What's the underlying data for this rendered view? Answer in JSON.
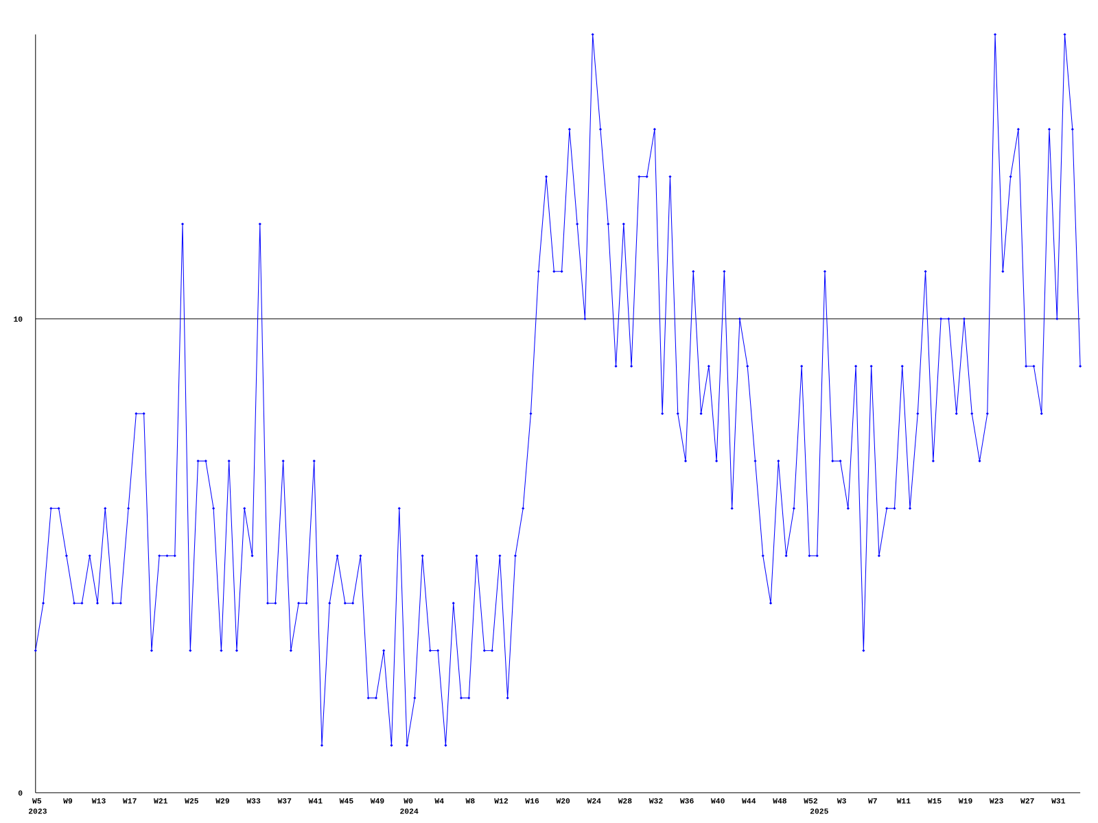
{
  "chart_data": {
    "type": "line",
    "categories": [
      "W5",
      null,
      null,
      null,
      "W9",
      null,
      null,
      null,
      "W13",
      null,
      null,
      null,
      "W17",
      null,
      null,
      null,
      "W21",
      null,
      null,
      null,
      "W25",
      null,
      null,
      null,
      "W29",
      null,
      null,
      null,
      "W33",
      null,
      null,
      null,
      "W37",
      null,
      null,
      null,
      "W41",
      null,
      null,
      null,
      "W45",
      null,
      null,
      null,
      "W49",
      null,
      null,
      null,
      "W0",
      null,
      null,
      null,
      "W4",
      null,
      null,
      null,
      "W8",
      null,
      null,
      null,
      "W12",
      null,
      null,
      null,
      "W16",
      null,
      null,
      null,
      "W20",
      null,
      null,
      null,
      "W24",
      null,
      null,
      null,
      "W28",
      null,
      null,
      null,
      "W32",
      null,
      null,
      null,
      "W36",
      null,
      null,
      null,
      "W40",
      null,
      null,
      null,
      "W44",
      null,
      null,
      null,
      "W48",
      null,
      null,
      null,
      "W52",
      null,
      null,
      null,
      "W3",
      null,
      null,
      null,
      "W7",
      null,
      null,
      null,
      "W11",
      null,
      null,
      null,
      "W15",
      null,
      null,
      null,
      "W19",
      null,
      null,
      null,
      "W23",
      null,
      null,
      null,
      "W27",
      null,
      null,
      null,
      "W31",
      null,
      null,
      null
    ],
    "x_groups": [
      {
        "value": 0,
        "label": "2023"
      },
      {
        "value": 48,
        "label": "2024"
      },
      {
        "value": 101,
        "label": "2025"
      }
    ],
    "values": [
      3,
      4,
      6,
      6,
      5,
      4,
      4,
      5,
      4,
      6,
      4,
      4,
      6,
      8,
      8,
      3,
      5,
      5,
      5,
      12,
      3,
      7,
      7,
      6,
      3,
      7,
      3,
      6,
      5,
      12,
      4,
      4,
      7,
      3,
      4,
      4,
      7,
      1,
      4,
      5,
      4,
      4,
      5,
      2,
      2,
      3,
      1,
      6,
      1,
      2,
      5,
      3,
      3,
      1,
      4,
      2,
      2,
      5,
      3,
      3,
      5,
      2,
      5,
      6,
      8,
      11,
      13,
      11,
      11,
      14,
      12,
      10,
      16,
      14,
      12,
      9,
      12,
      9,
      13,
      13,
      14,
      8,
      13,
      8,
      7,
      11,
      8,
      9,
      7,
      11,
      6,
      10,
      9,
      7,
      5,
      4,
      7,
      5,
      6,
      9,
      5,
      5,
      11,
      7,
      7,
      6,
      9,
      3,
      9,
      5,
      6,
      6,
      9,
      6,
      8,
      11,
      7,
      10,
      10,
      8,
      10,
      8,
      7,
      8,
      16,
      11,
      13,
      14,
      9,
      9,
      8,
      14,
      10,
      16,
      14,
      9
    ],
    "color": "#0000ff",
    "ylim": [
      0,
      16
    ],
    "yticks": [
      0,
      10
    ],
    "grid": true
  }
}
